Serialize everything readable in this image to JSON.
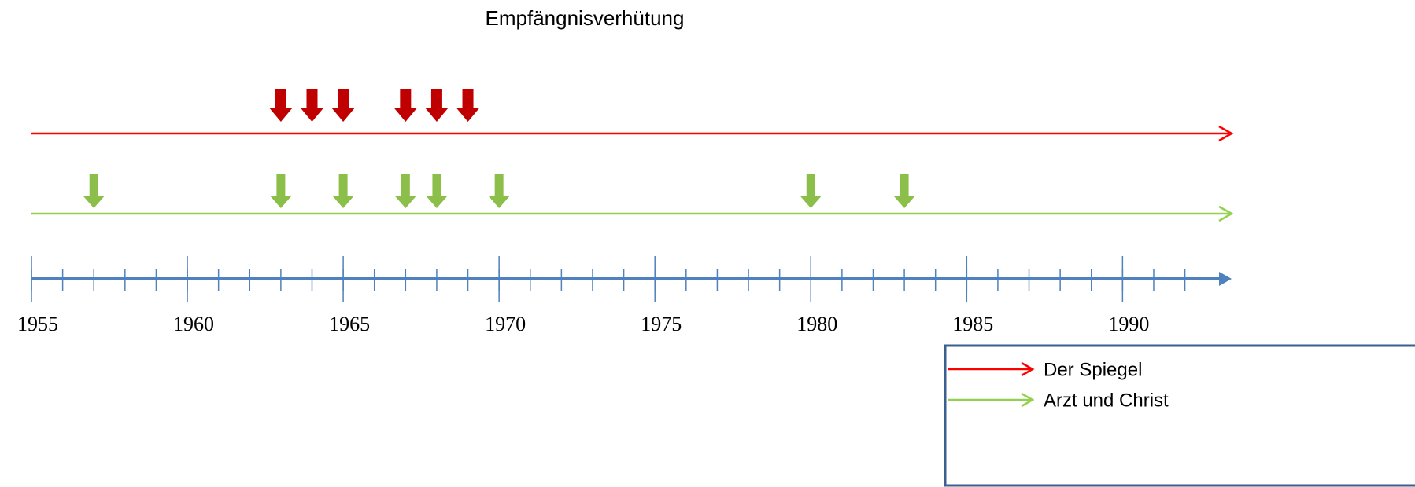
{
  "chart_data": {
    "type": "timeline",
    "title": "Empfängnisverhütung",
    "xlim": [
      1955,
      1993.5
    ],
    "xticks": [
      1955,
      1960,
      1965,
      1970,
      1975,
      1980,
      1985,
      1990
    ],
    "xminorticks": [
      1955,
      1956,
      1957,
      1958,
      1959,
      1960,
      1961,
      1962,
      1963,
      1964,
      1965,
      1966,
      1967,
      1968,
      1969,
      1970,
      1971,
      1972,
      1973,
      1974,
      1975,
      1976,
      1977,
      1978,
      1979,
      1980,
      1981,
      1982,
      1983,
      1984,
      1985,
      1986,
      1987,
      1988,
      1989,
      1990,
      1991,
      1992
    ],
    "axis_color": "#4f81bd",
    "series": [
      {
        "name": "Der Spiegel",
        "color": "#ff0000",
        "marker_color": "#c00000",
        "values": [
          1963,
          1964,
          1965,
          1967,
          1968,
          1969
        ]
      },
      {
        "name": "Arzt und Christ",
        "color": "#92d050",
        "marker_color": "#8cbf4a",
        "values": [
          1957,
          1963,
          1965,
          1967,
          1968,
          1970,
          1980,
          1983
        ]
      }
    ]
  }
}
